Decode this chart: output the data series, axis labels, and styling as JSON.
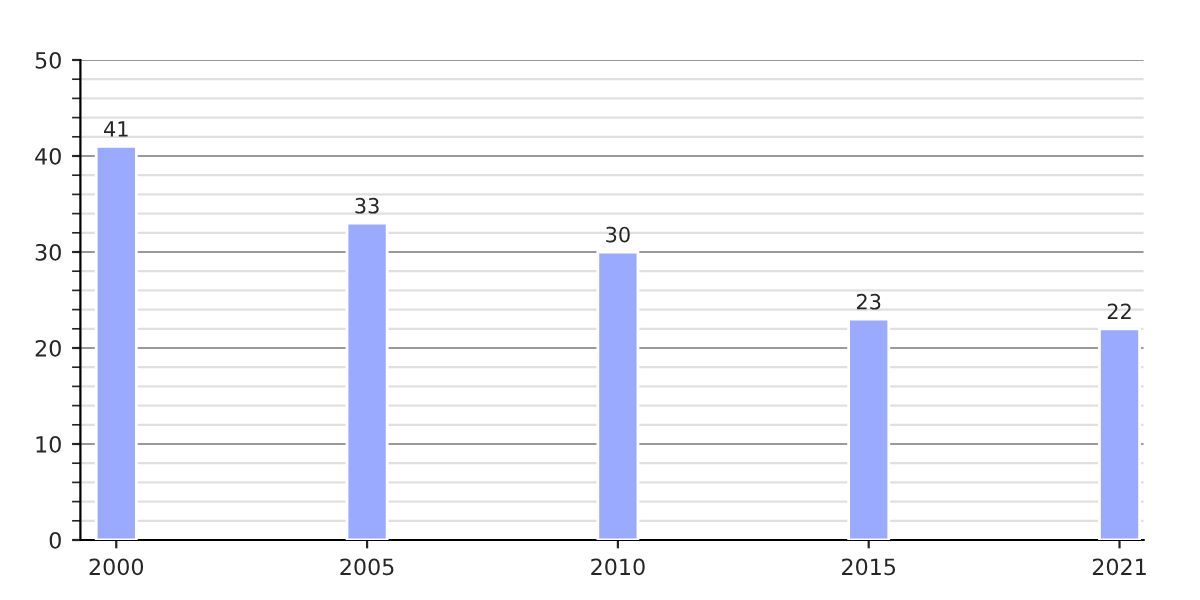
{
  "chart_data": {
    "type": "bar",
    "categories": [
      "2000",
      "2005",
      "2010",
      "2015",
      "2021"
    ],
    "values": [
      41,
      33,
      30,
      23,
      22
    ],
    "color": "#99aaff",
    "ylim": [
      0,
      50
    ],
    "yticks": [
      0,
      10,
      20,
      30,
      40,
      50
    ],
    "grid": "y",
    "data_labels": true
  }
}
